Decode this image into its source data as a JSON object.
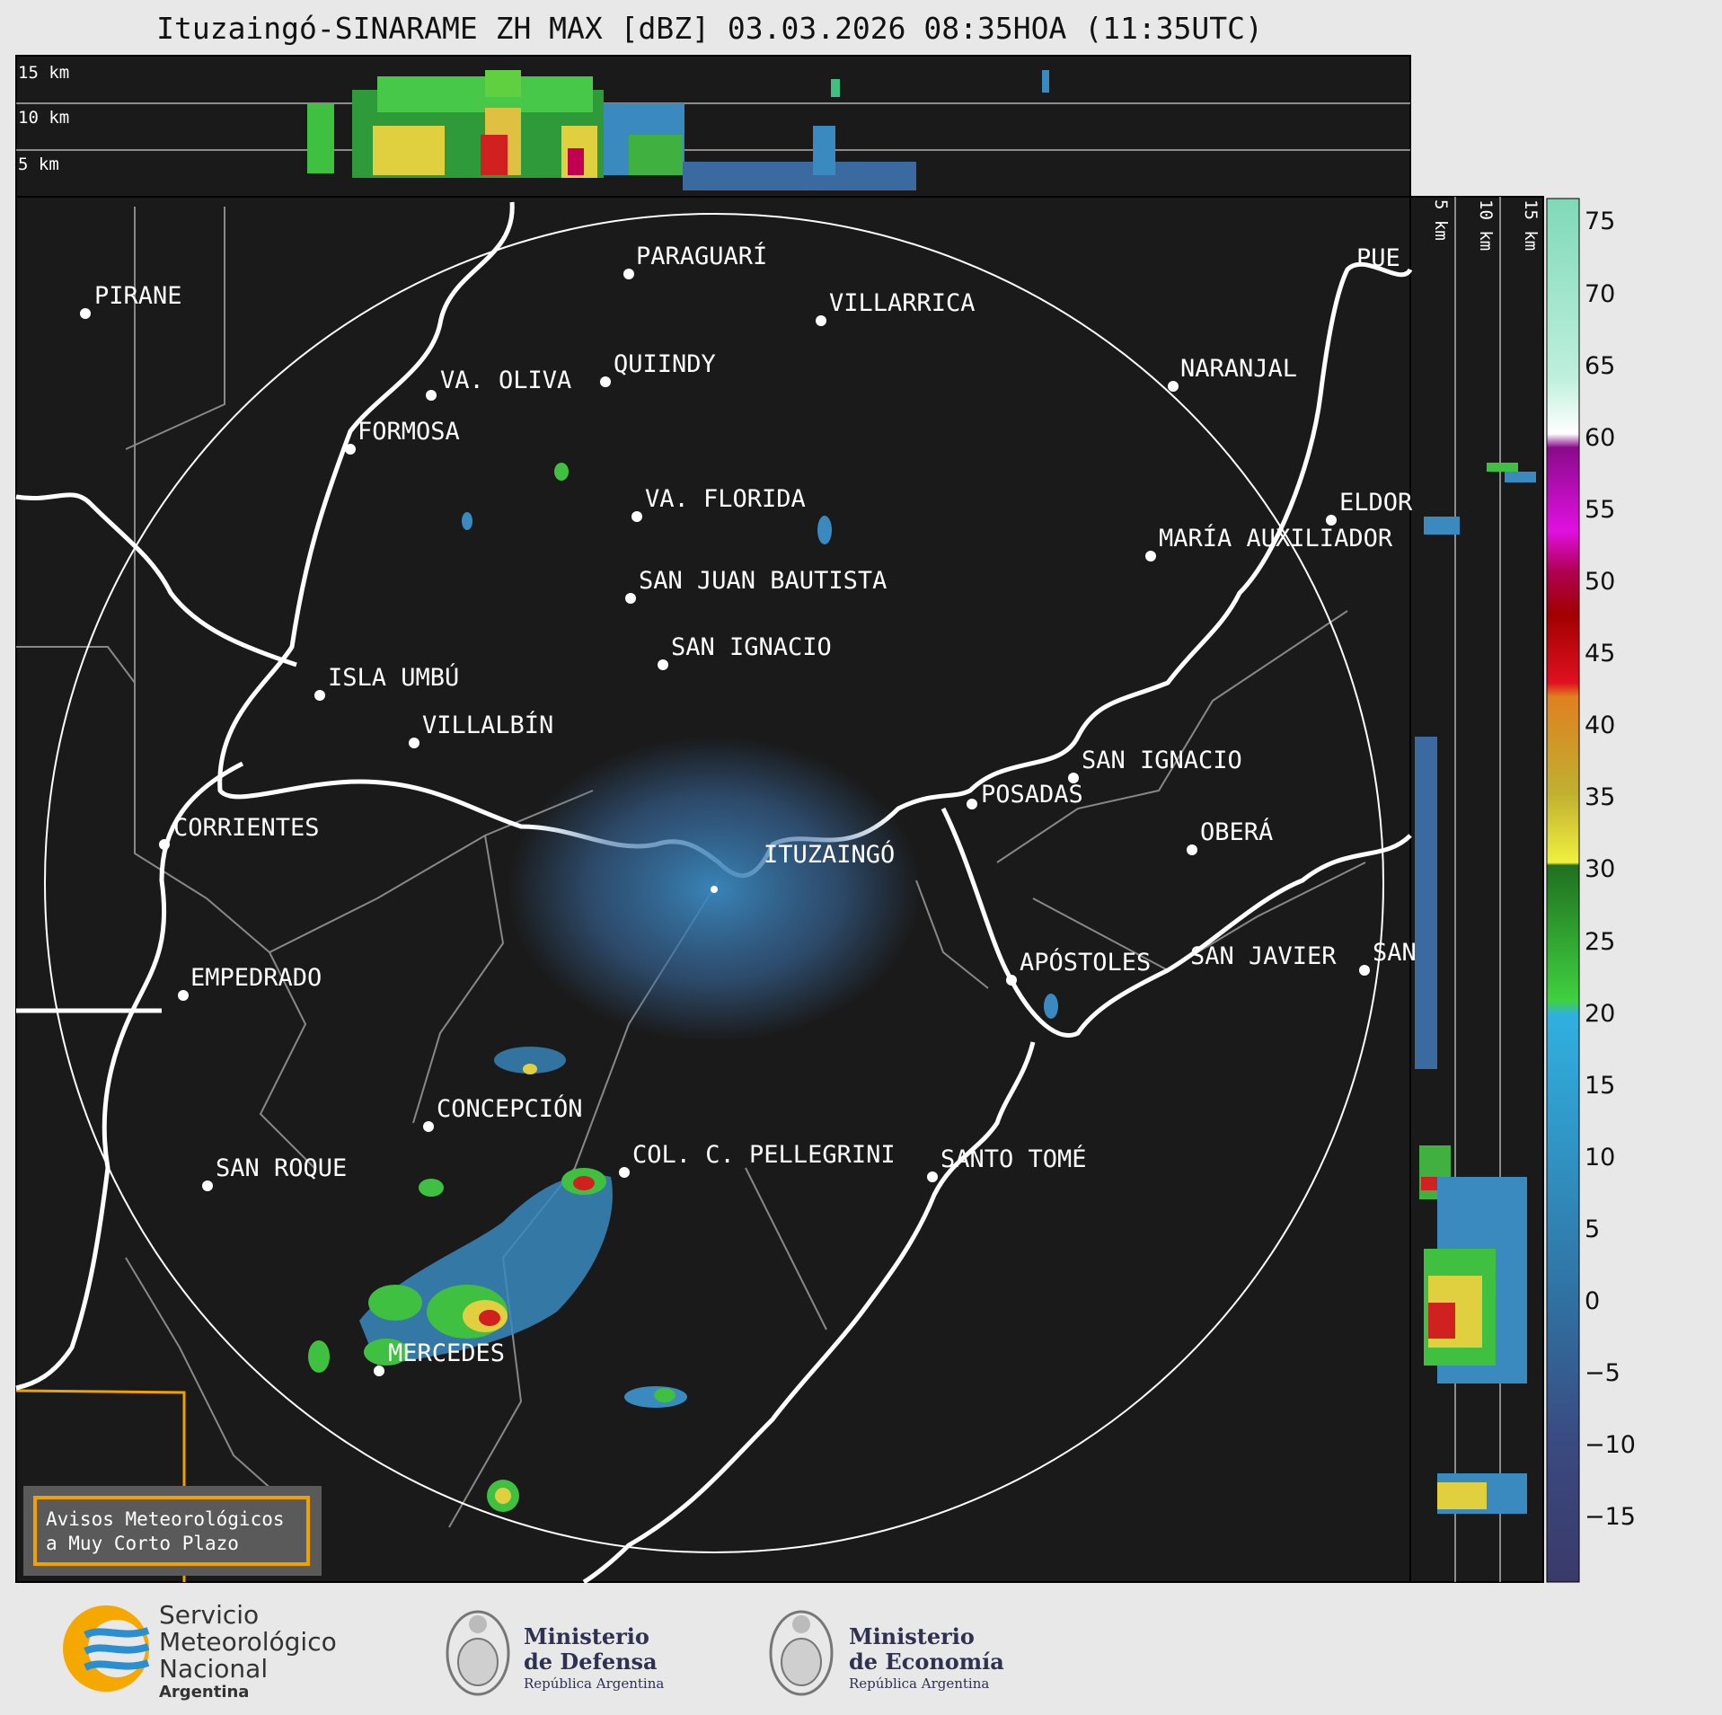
{
  "title": "Ituzaingó-SINARAME ZH MAX [dBZ] 03.03.2026 08:35HOA (11:35UTC)",
  "height_labels_top": [
    "15 km",
    "10 km",
    "5 km"
  ],
  "height_labels_side": [
    "5 km",
    "10 km",
    "15 km"
  ],
  "radar_site": "ITUZAINGÓ",
  "cities": [
    {
      "name": "PIRANE"
    },
    {
      "name": "PARAGUARÍ"
    },
    {
      "name": "VILLARRICA"
    },
    {
      "name": "VA. OLIVA"
    },
    {
      "name": "QUIINDY"
    },
    {
      "name": "NARANJAL"
    },
    {
      "name": "FORMOSA"
    },
    {
      "name": "VA. FLORIDA"
    },
    {
      "name": "ELDOR"
    },
    {
      "name": "MARÍA AUXILIADOR"
    },
    {
      "name": "SAN JUAN BAUTISTA"
    },
    {
      "name": "SAN IGNACIO"
    },
    {
      "name": "ISLA UMBÚ"
    },
    {
      "name": "VILLALBÍN"
    },
    {
      "name": "SAN IGNACIO"
    },
    {
      "name": "POSADAS"
    },
    {
      "name": "CORRIENTES"
    },
    {
      "name": "ITUZAINGÓ"
    },
    {
      "name": "OBERÁ"
    },
    {
      "name": "EMPEDRADO"
    },
    {
      "name": "APÓSTOLES"
    },
    {
      "name": "SAN JAVIER"
    },
    {
      "name": "SAN"
    },
    {
      "name": "CONCEPCIÓN"
    },
    {
      "name": "COL. C. PELLEGRINI"
    },
    {
      "name": "SANTO TOMÉ"
    },
    {
      "name": "SAN ROQUE"
    },
    {
      "name": "MERCEDES"
    },
    {
      "name": "PUE"
    }
  ],
  "colorbar": {
    "unit": "dBZ",
    "ticks": [
      "75",
      "70",
      "65",
      "60",
      "55",
      "50",
      "45",
      "40",
      "35",
      "30",
      "25",
      "20",
      "15",
      "10",
      "5",
      "0",
      "−5",
      "−10",
      "−15"
    ],
    "range": [
      -20,
      77
    ]
  },
  "warning_box": {
    "line1": "Avisos Meteorológicos",
    "line2": "a Muy Corto Plazo",
    "border_color": "#f0a000"
  },
  "footer": {
    "smn": {
      "line1": "Servicio",
      "line2": "Meteorológico",
      "line3": "Nacional",
      "line4": "Argentina"
    },
    "defensa": {
      "line1": "Ministerio",
      "line2": "de Defensa",
      "line3": "República Argentina"
    },
    "economia": {
      "line1": "Ministerio",
      "line2": "de Economía",
      "line3": "República Argentina"
    }
  },
  "colors": {
    "background": "#1a1a1a",
    "border_white": "#ffffff",
    "province": "#888888",
    "accent_orange": "#f0a000"
  }
}
